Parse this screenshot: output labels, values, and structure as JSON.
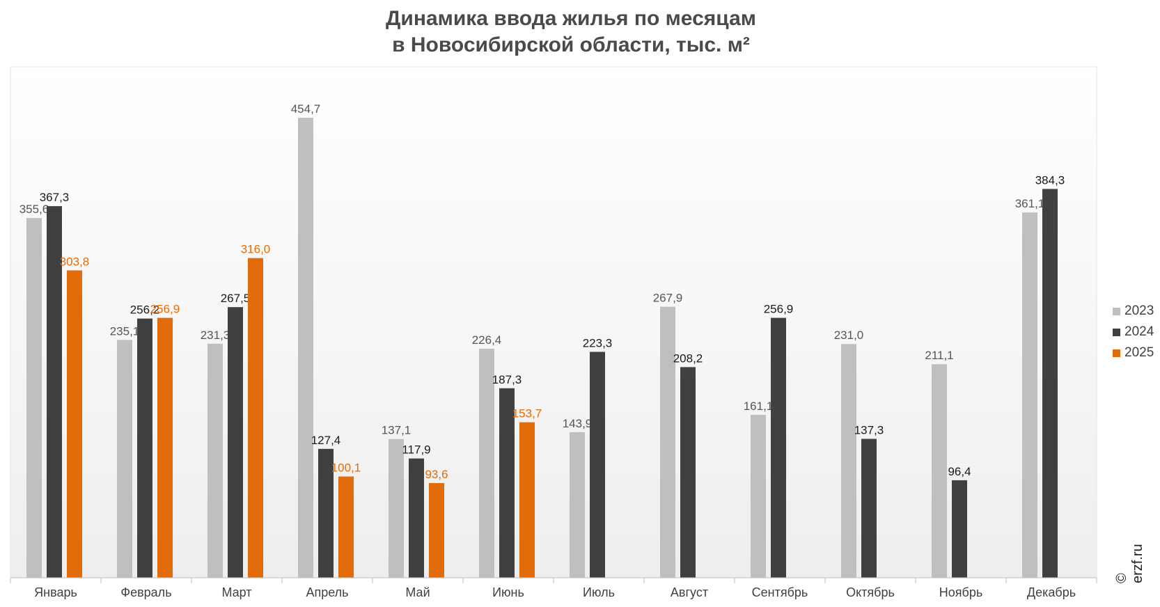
{
  "chart_data": {
    "type": "bar",
    "title": [
      "Динамика ввода жилья по месяцам",
      "в Новосибирской области, тыс. м²"
    ],
    "categories": [
      "Январь",
      "Февраль",
      "Март",
      "Апрель",
      "Май",
      "Июнь",
      "Июль",
      "Август",
      "Сентябрь",
      "Октябрь",
      "Ноябрь",
      "Декабрь"
    ],
    "series": [
      {
        "name": "2023",
        "color": "#bfbfbf",
        "label_color": "#555555",
        "values": [
          355.6,
          235.1,
          231.3,
          454.7,
          137.1,
          226.4,
          143.9,
          267.9,
          161.1,
          231.0,
          211.1,
          361.1
        ],
        "labels": [
          "355,6",
          "235,1",
          "231,3",
          "454,7",
          "137,1",
          "226,4",
          "143,9",
          "267,9",
          "161,1",
          "231,0",
          "211,1",
          "361,1"
        ]
      },
      {
        "name": "2024",
        "color": "#404040",
        "label_color": "#1a1a1a",
        "values": [
          367.3,
          256.2,
          267.5,
          127.4,
          117.9,
          187.3,
          223.3,
          208.2,
          256.9,
          137.3,
          96.4,
          384.3
        ],
        "labels": [
          "367,3",
          "256,2",
          "267,5",
          "127,4",
          "117,9",
          "187,3",
          "223,3",
          "208,2",
          "256,9",
          "137,3",
          "96,4",
          "384,3"
        ]
      },
      {
        "name": "2025",
        "color": "#e36c0a",
        "label_color": "#e36c0a",
        "values": [
          303.8,
          256.9,
          316.0,
          100.1,
          93.6,
          153.7,
          null,
          null,
          null,
          null,
          null,
          null
        ],
        "labels": [
          "303,8",
          "256,9",
          "316,0",
          "100,1",
          "93,6",
          "153,7",
          "",
          "",
          "",
          "",
          "",
          ""
        ]
      }
    ],
    "ylim": [
      0,
      505
    ],
    "legend_position": "right",
    "grid": false
  },
  "credit": "© erzf.ru"
}
